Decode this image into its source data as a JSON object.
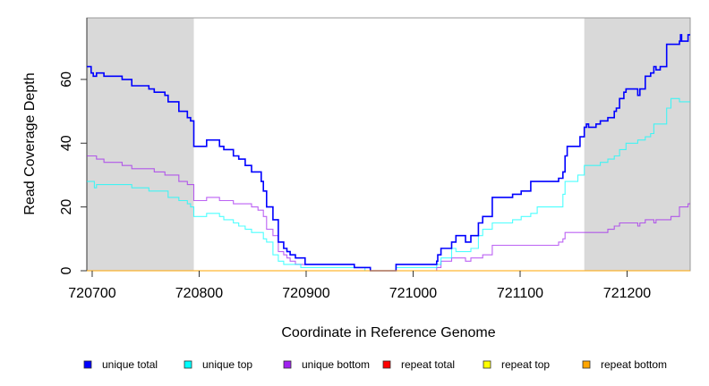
{
  "chart_data": {
    "type": "line",
    "step": true,
    "title": "",
    "xlabel": "Coordinate in Reference Genome",
    "ylabel": "Read Coverage Depth",
    "xlim": [
      720695,
      721259
    ],
    "ylim": [
      0,
      79.3
    ],
    "xticks": [
      720700,
      720800,
      720900,
      721000,
      721100,
      721200
    ],
    "xtick_labels": [
      "720700",
      "720800",
      "720900",
      "721000",
      "721100",
      "721200"
    ],
    "yticks": [
      0,
      20,
      40,
      60
    ],
    "ytick_labels": [
      "0",
      "20",
      "40",
      "60"
    ],
    "grid": false,
    "shaded_regions": [
      [
        720695,
        720795
      ],
      [
        721160,
        721259
      ]
    ],
    "shade_color": "#d9d9d9",
    "legend_position": "bottom",
    "series": [
      {
        "name": "unique bottom",
        "color": "#a020f0",
        "points": [
          [
            720695,
            36
          ],
          [
            720704,
            35
          ],
          [
            720711,
            34
          ],
          [
            720728,
            33
          ],
          [
            720737,
            32
          ],
          [
            720758,
            31
          ],
          [
            720768,
            30
          ],
          [
            720781,
            28
          ],
          [
            720789,
            27
          ],
          [
            720795,
            22
          ],
          [
            720807,
            23
          ],
          [
            720819,
            22
          ],
          [
            720832,
            21
          ],
          [
            720849,
            20
          ],
          [
            720855,
            19
          ],
          [
            720860,
            17
          ],
          [
            720863,
            13
          ],
          [
            720869,
            11
          ],
          [
            720874,
            6
          ],
          [
            720879,
            5
          ],
          [
            720882,
            4
          ],
          [
            720885,
            3
          ],
          [
            720890,
            2
          ],
          [
            720945,
            1
          ],
          [
            720960,
            0
          ],
          [
            721022,
            1
          ],
          [
            721026,
            3
          ],
          [
            721036,
            4
          ],
          [
            721049,
            3
          ],
          [
            721054,
            4
          ],
          [
            721065,
            5
          ],
          [
            721074,
            8
          ],
          [
            721136,
            9
          ],
          [
            721140,
            10
          ],
          [
            721142,
            12
          ],
          [
            721182,
            13
          ],
          [
            721188,
            14
          ],
          [
            721193,
            15
          ],
          [
            721210,
            14
          ],
          [
            721212,
            15
          ],
          [
            721217,
            16
          ],
          [
            721225,
            15
          ],
          [
            721227,
            16
          ],
          [
            721231,
            16
          ],
          [
            721241,
            17
          ],
          [
            721249,
            20
          ],
          [
            721257,
            21
          ],
          [
            721259,
            21
          ]
        ]
      },
      {
        "name": "unique top",
        "color": "#00ffff",
        "points": [
          [
            720695,
            28
          ],
          [
            720702,
            26
          ],
          [
            720704,
            27
          ],
          [
            720737,
            26
          ],
          [
            720753,
            25
          ],
          [
            720771,
            23
          ],
          [
            720781,
            22
          ],
          [
            720789,
            21
          ],
          [
            720792,
            20
          ],
          [
            720795,
            17
          ],
          [
            720807,
            18
          ],
          [
            720819,
            17
          ],
          [
            720823,
            16
          ],
          [
            720832,
            15
          ],
          [
            720837,
            14
          ],
          [
            720843,
            13
          ],
          [
            720849,
            12
          ],
          [
            720860,
            10
          ],
          [
            720863,
            9
          ],
          [
            720869,
            5
          ],
          [
            720874,
            3
          ],
          [
            720879,
            2
          ],
          [
            720895,
            1
          ],
          [
            720955,
            0
          ],
          [
            720984,
            1
          ],
          [
            721022,
            2
          ],
          [
            721026,
            4
          ],
          [
            721036,
            7
          ],
          [
            721040,
            6
          ],
          [
            721054,
            7
          ],
          [
            721061,
            11
          ],
          [
            721065,
            13
          ],
          [
            721074,
            15
          ],
          [
            721093,
            16
          ],
          [
            721101,
            17
          ],
          [
            721110,
            18
          ],
          [
            721116,
            20
          ],
          [
            721140,
            24
          ],
          [
            721142,
            28
          ],
          [
            721154,
            30
          ],
          [
            721160,
            33
          ],
          [
            721175,
            34
          ],
          [
            721182,
            35
          ],
          [
            721188,
            36
          ],
          [
            721193,
            38
          ],
          [
            721199,
            40
          ],
          [
            721210,
            41
          ],
          [
            721217,
            42
          ],
          [
            721222,
            43
          ],
          [
            721225,
            46
          ],
          [
            721237,
            51
          ],
          [
            721241,
            54
          ],
          [
            721249,
            53
          ],
          [
            721259,
            53
          ]
        ]
      },
      {
        "name": "unique total",
        "color": "#0000ff",
        "points": [
          [
            720695,
            64
          ],
          [
            720699,
            62
          ],
          [
            720701,
            61
          ],
          [
            720704,
            62
          ],
          [
            720711,
            61
          ],
          [
            720728,
            60
          ],
          [
            720737,
            58
          ],
          [
            720753,
            57
          ],
          [
            720758,
            56
          ],
          [
            720768,
            55
          ],
          [
            720771,
            53
          ],
          [
            720781,
            50
          ],
          [
            720789,
            48
          ],
          [
            720792,
            47
          ],
          [
            720795,
            39
          ],
          [
            720807,
            41
          ],
          [
            720819,
            39
          ],
          [
            720823,
            38
          ],
          [
            720832,
            36
          ],
          [
            720837,
            35
          ],
          [
            720843,
            33
          ],
          [
            720849,
            31
          ],
          [
            720858,
            28
          ],
          [
            720860,
            25
          ],
          [
            720863,
            20
          ],
          [
            720869,
            16
          ],
          [
            720874,
            9
          ],
          [
            720879,
            7
          ],
          [
            720882,
            6
          ],
          [
            720885,
            5
          ],
          [
            720890,
            4
          ],
          [
            720899,
            2
          ],
          [
            720945,
            1
          ],
          [
            720960,
            0
          ],
          [
            720984,
            2
          ],
          [
            721022,
            3
          ],
          [
            721023,
            5
          ],
          [
            721026,
            7
          ],
          [
            721036,
            9
          ],
          [
            721040,
            11
          ],
          [
            721049,
            9
          ],
          [
            721054,
            11
          ],
          [
            721061,
            15
          ],
          [
            721065,
            17
          ],
          [
            721074,
            23
          ],
          [
            721093,
            24
          ],
          [
            721101,
            25
          ],
          [
            721110,
            28
          ],
          [
            721136,
            29
          ],
          [
            721140,
            31
          ],
          [
            721142,
            36
          ],
          [
            721144,
            39
          ],
          [
            721156,
            42
          ],
          [
            721160,
            45
          ],
          [
            721162,
            46
          ],
          [
            721164,
            45
          ],
          [
            721171,
            46
          ],
          [
            721175,
            47
          ],
          [
            721182,
            48
          ],
          [
            721188,
            50
          ],
          [
            721190,
            51
          ],
          [
            721193,
            54
          ],
          [
            721197,
            56
          ],
          [
            721199,
            57
          ],
          [
            721210,
            55
          ],
          [
            721212,
            57
          ],
          [
            721217,
            61
          ],
          [
            721222,
            62
          ],
          [
            721225,
            64
          ],
          [
            721227,
            63
          ],
          [
            721231,
            64
          ],
          [
            721237,
            71
          ],
          [
            721249,
            72
          ],
          [
            721250,
            74
          ],
          [
            721251,
            72
          ],
          [
            721257,
            74
          ],
          [
            721259,
            74
          ]
        ]
      },
      {
        "name": "repeat total",
        "color": "#ff0000",
        "points": [
          [
            720695,
            0
          ],
          [
            721259,
            0
          ]
        ]
      },
      {
        "name": "repeat top",
        "color": "#ffff00",
        "points": [
          [
            720695,
            0
          ],
          [
            721259,
            0
          ]
        ]
      },
      {
        "name": "repeat bottom",
        "color": "#ffa500",
        "points": [
          [
            720695,
            0
          ],
          [
            721259,
            0
          ]
        ]
      }
    ],
    "legend": [
      "unique total",
      "unique top",
      "unique bottom",
      "repeat total",
      "repeat top",
      "repeat bottom"
    ]
  }
}
